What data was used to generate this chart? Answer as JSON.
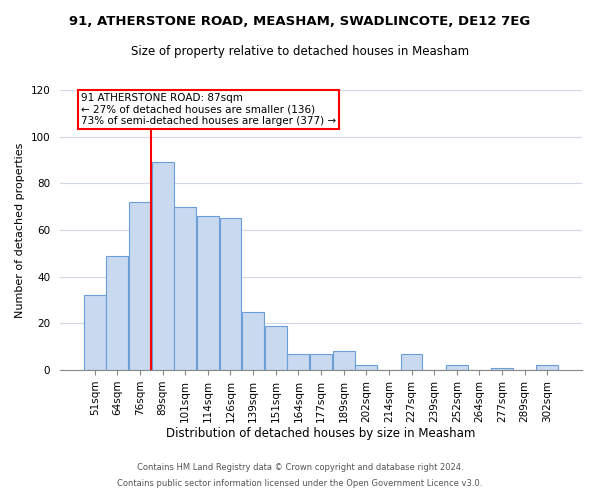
{
  "title": "91, ATHERSTONE ROAD, MEASHAM, SWADLINCOTE, DE12 7EG",
  "subtitle": "Size of property relative to detached houses in Measham",
  "xlabel": "Distribution of detached houses by size in Measham",
  "ylabel": "Number of detached properties",
  "categories": [
    "51sqm",
    "64sqm",
    "76sqm",
    "89sqm",
    "101sqm",
    "114sqm",
    "126sqm",
    "139sqm",
    "151sqm",
    "164sqm",
    "177sqm",
    "189sqm",
    "202sqm",
    "214sqm",
    "227sqm",
    "239sqm",
    "252sqm",
    "264sqm",
    "277sqm",
    "289sqm",
    "302sqm"
  ],
  "values": [
    32,
    49,
    72,
    89,
    70,
    66,
    65,
    25,
    19,
    7,
    7,
    8,
    2,
    0,
    7,
    0,
    2,
    0,
    1,
    0,
    2
  ],
  "bar_color": "#c9d9f0",
  "bar_edge_color": "#6a9fd8",
  "ylim": [
    0,
    120
  ],
  "yticks": [
    0,
    20,
    40,
    60,
    80,
    100,
    120
  ],
  "property_line_label": "91 ATHERSTONE ROAD: 87sqm",
  "annotation_line1": "← 27% of detached houses are smaller (136)",
  "annotation_line2": "73% of semi-detached houses are larger (377) →",
  "footer1": "Contains HM Land Registry data © Crown copyright and database right 2024.",
  "footer2": "Contains public sector information licensed under the Open Government Licence v3.0.",
  "background_color": "#ffffff",
  "grid_color": "#d0d8e8",
  "title_fontsize": 9.5,
  "subtitle_fontsize": 8.5,
  "xlabel_fontsize": 8.5,
  "ylabel_fontsize": 8.0,
  "tick_fontsize": 7.5,
  "footer_fontsize": 6.0,
  "annotation_fontsize": 7.5
}
